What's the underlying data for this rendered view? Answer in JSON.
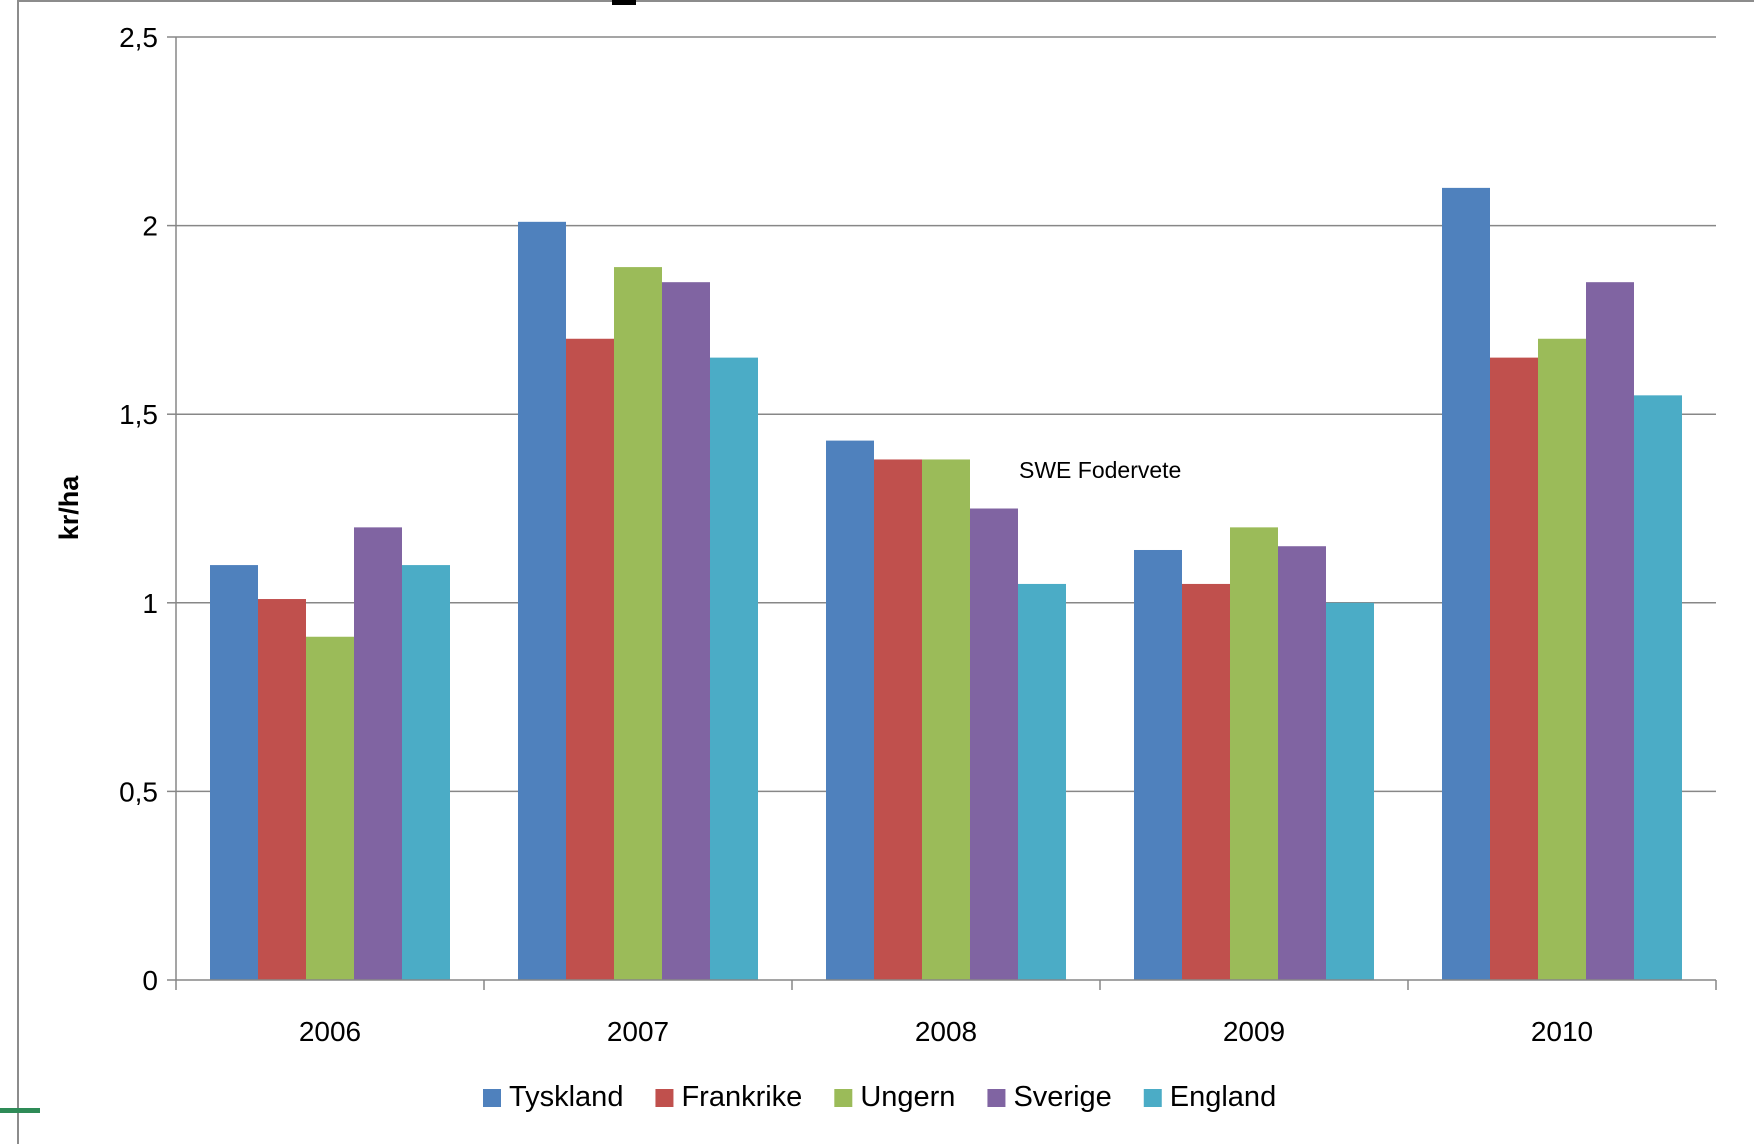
{
  "chart_data": {
    "type": "bar",
    "title": "",
    "xlabel": "",
    "ylabel": "kr/ha",
    "ylim": [
      0,
      2.5
    ],
    "yticks": [
      "0",
      "0,5",
      "1",
      "1,5",
      "2",
      "2,5"
    ],
    "ytick_values": [
      0,
      0.5,
      1,
      1.5,
      2,
      2.5
    ],
    "categories": [
      "2006",
      "2007",
      "2008",
      "2009",
      "2010"
    ],
    "series": [
      {
        "name": "Tyskland",
        "color": "#4F81BD",
        "values": [
          1.1,
          2.01,
          1.43,
          1.14,
          2.1
        ]
      },
      {
        "name": "Frankrike",
        "color": "#C0504D",
        "values": [
          1.01,
          1.7,
          1.38,
          1.05,
          1.65
        ]
      },
      {
        "name": "Ungern",
        "color": "#9BBB59",
        "values": [
          0.91,
          1.89,
          1.38,
          1.2,
          1.7
        ]
      },
      {
        "name": "Sverige",
        "color": "#8064A2",
        "values": [
          1.2,
          1.85,
          1.25,
          1.15,
          1.85
        ]
      },
      {
        "name": "England",
        "color": "#4BACC6",
        "values": [
          1.1,
          1.65,
          1.05,
          1.0,
          1.55
        ]
      }
    ],
    "annotation": "SWE Fodervete",
    "grid": true,
    "legend": "bottom"
  }
}
